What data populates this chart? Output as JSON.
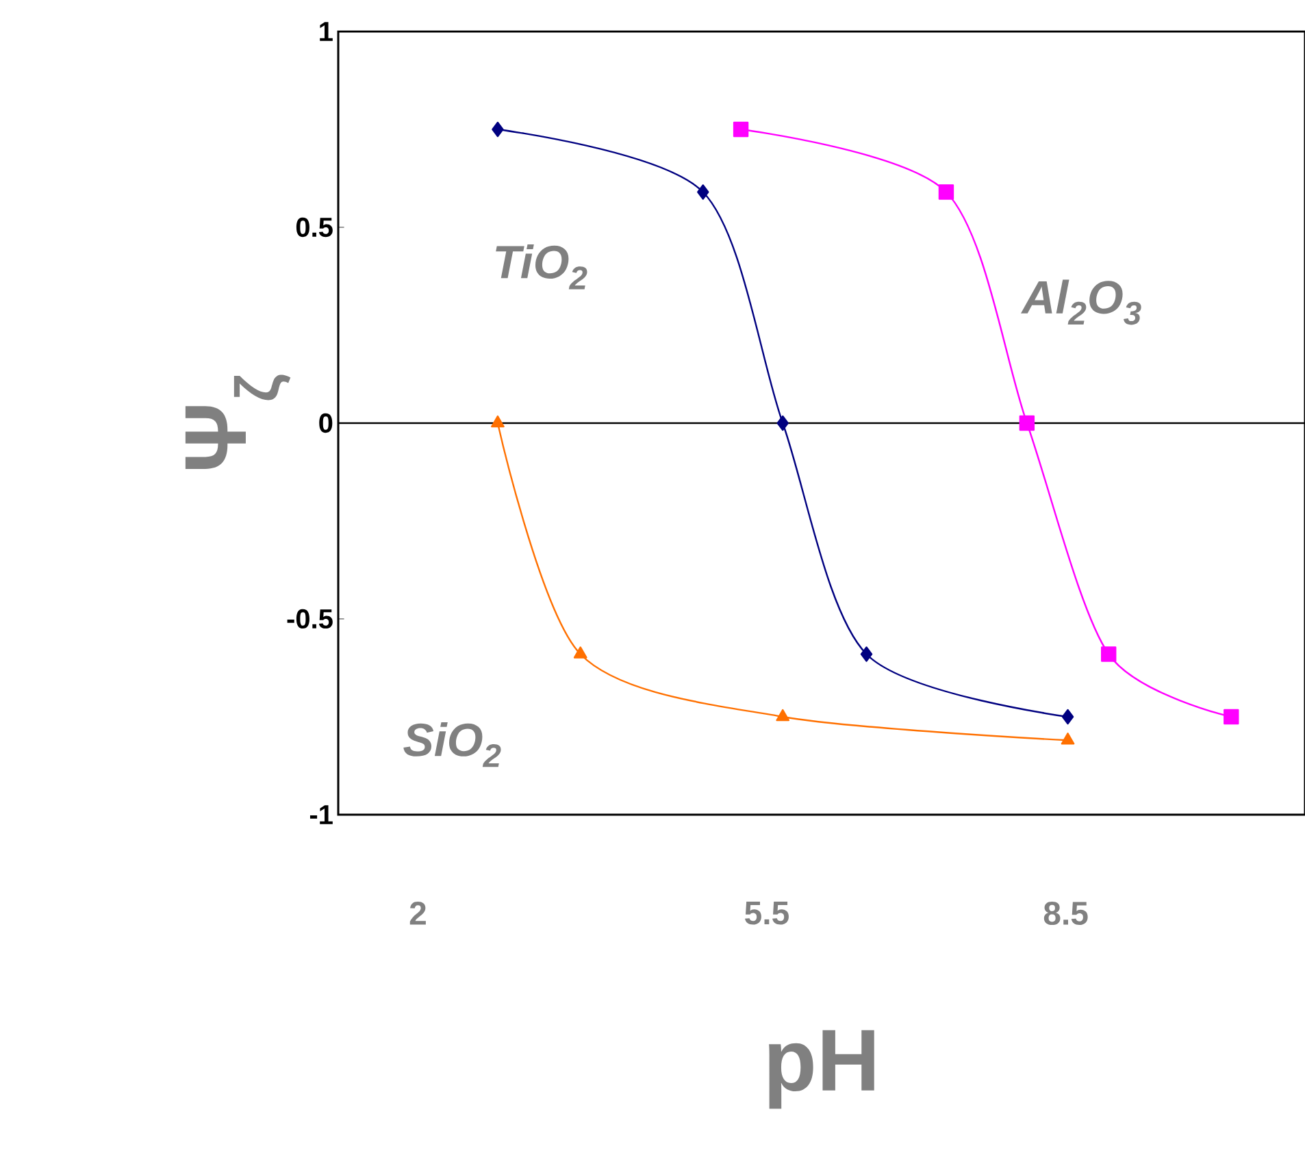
{
  "chart_data": {
    "type": "line",
    "xlabel": "pH",
    "ylabel": "Ψ$_{ζ}$",
    "xlim": [
      1.2,
      10.9
    ],
    "xticks": [
      2,
      5.5,
      8.5
    ],
    "ylim": [
      -1,
      1
    ],
    "yticks": [
      1,
      0.5,
      0,
      -0.5,
      -1
    ],
    "grid": false,
    "line_style": "solid",
    "ref_lines": [
      {
        "axis": "y",
        "value": 0,
        "color": "#000000"
      }
    ],
    "series": [
      {
        "name": "TiO$_{2}$",
        "color": "#000080",
        "marker": "diamond",
        "x": [
          2.8,
          4.86,
          5.66,
          6.5,
          8.52
        ],
        "values": [
          0.75,
          0.59,
          0,
          -0.59,
          -0.75
        ]
      },
      {
        "name": "Al$_{2}$O$_{3}$",
        "color": "#ff00ff",
        "marker": "square",
        "x": [
          5.24,
          7.3,
          8.11,
          8.93,
          10.16
        ],
        "values": [
          0.75,
          0.59,
          0,
          -0.59,
          -0.75
        ]
      },
      {
        "name": "SiO$_{2}$",
        "color": "#ff7000",
        "marker": "triangle",
        "x": [
          2.8,
          3.63,
          5.66,
          8.52
        ],
        "values": [
          0,
          -0.59,
          -0.75,
          -0.81
        ]
      }
    ]
  }
}
